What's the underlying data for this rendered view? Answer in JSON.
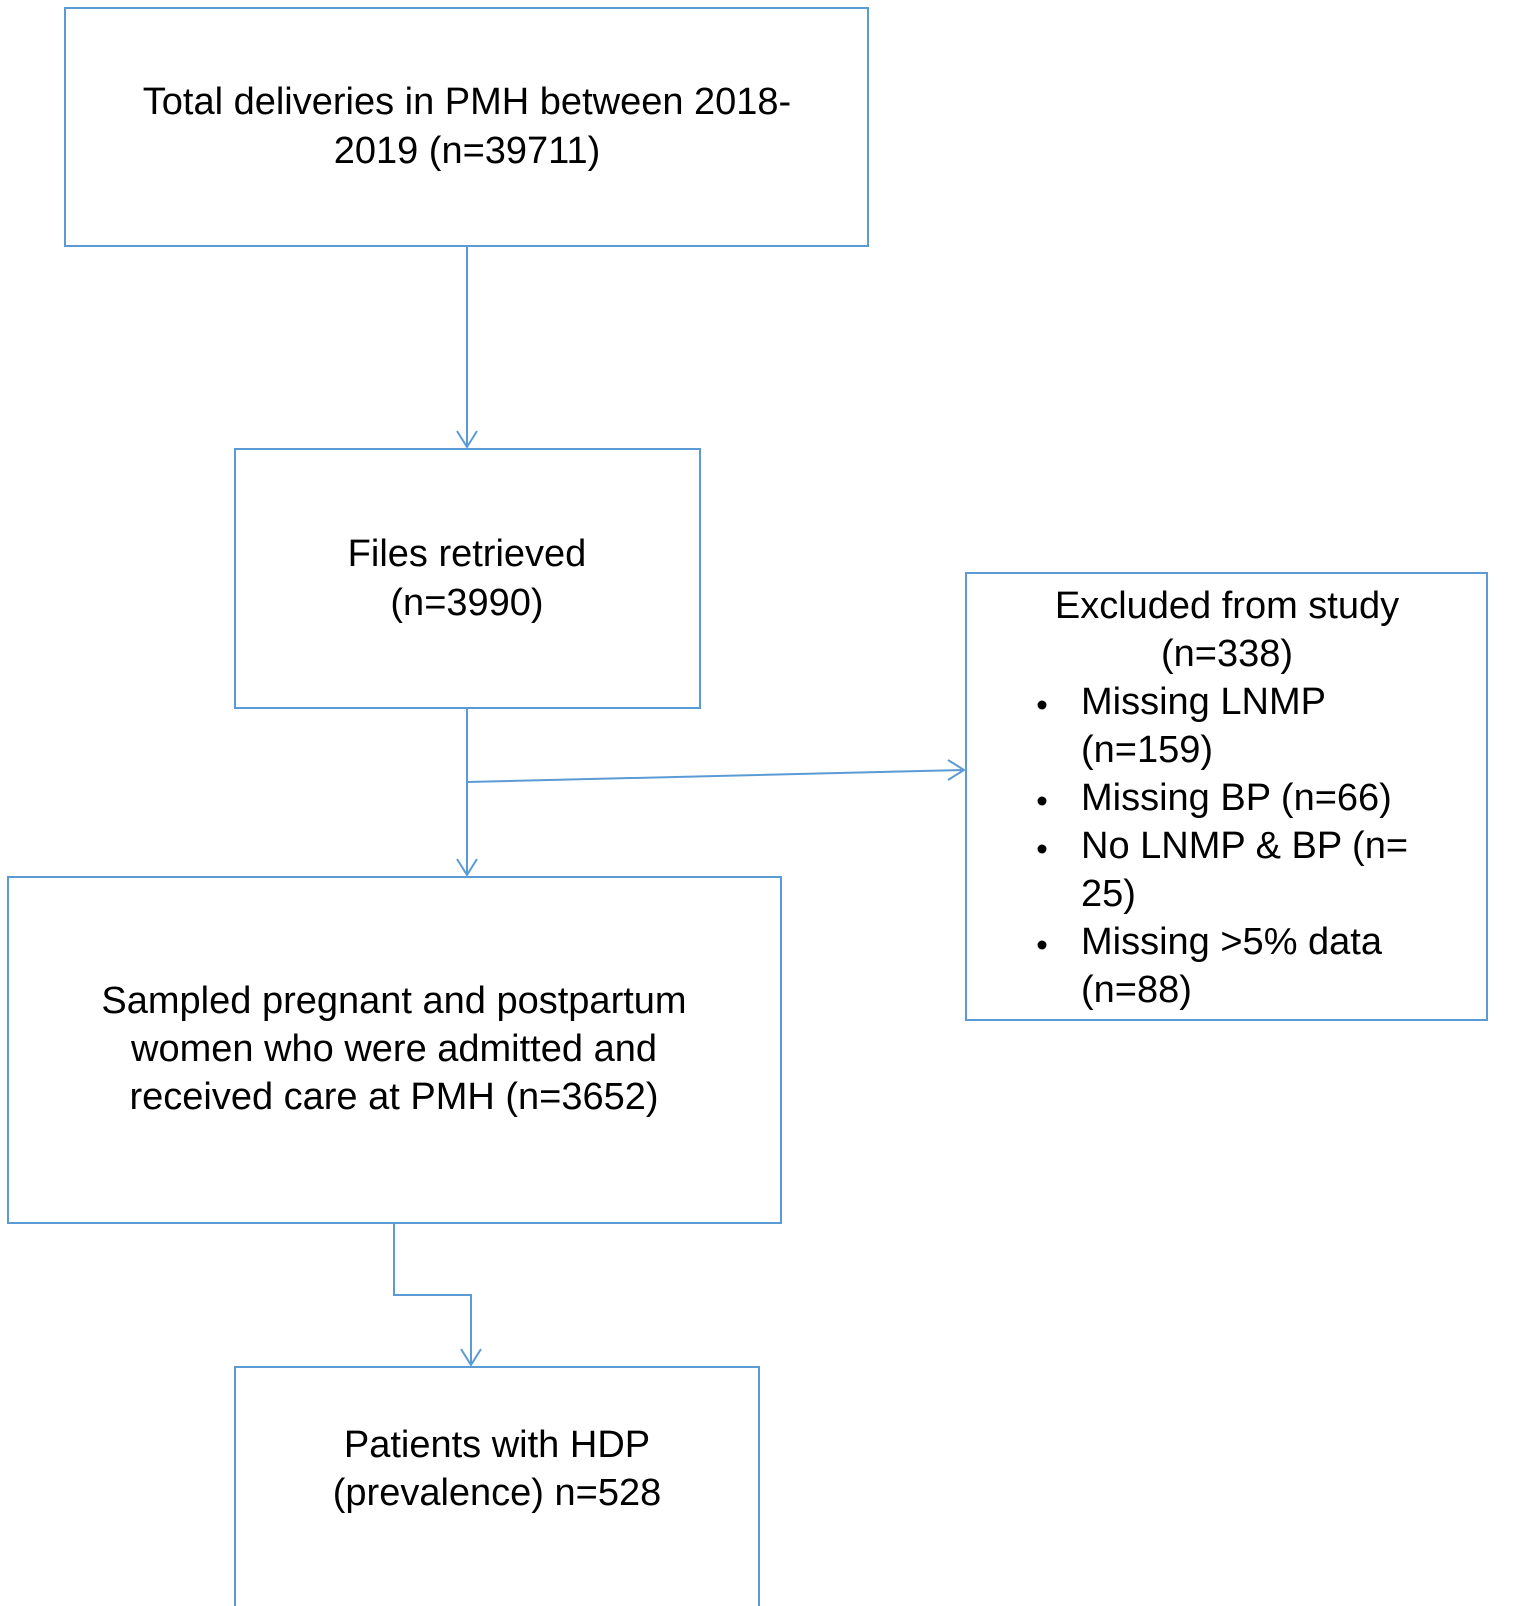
{
  "nodes": [
    {
      "lines": [
        "Total deliveries in PMH between 2018-",
        "2019 (n=39711)"
      ]
    },
    {
      "lines": [
        "Files retrieved",
        "(n=3990)"
      ]
    },
    {
      "lines": [
        "Sampled pregnant and postpartum",
        "women who were admitted and",
        "received care at PMH (n=3652)"
      ]
    },
    {
      "lines": [
        "Patients with HDP",
        "(prevalence) n=528"
      ]
    }
  ],
  "exclusion": {
    "title_lines": [
      "Excluded from study",
      "(n=338)"
    ],
    "items": [
      {
        "lines": [
          "Missing LNMP",
          "(n=159)"
        ]
      },
      {
        "lines": [
          "Missing BP (n=66)"
        ]
      },
      {
        "lines": [
          "No LNMP & BP (n=",
          "25)"
        ]
      },
      {
        "lines": [
          "Missing >5% data",
          "(n=88)"
        ]
      }
    ]
  }
}
